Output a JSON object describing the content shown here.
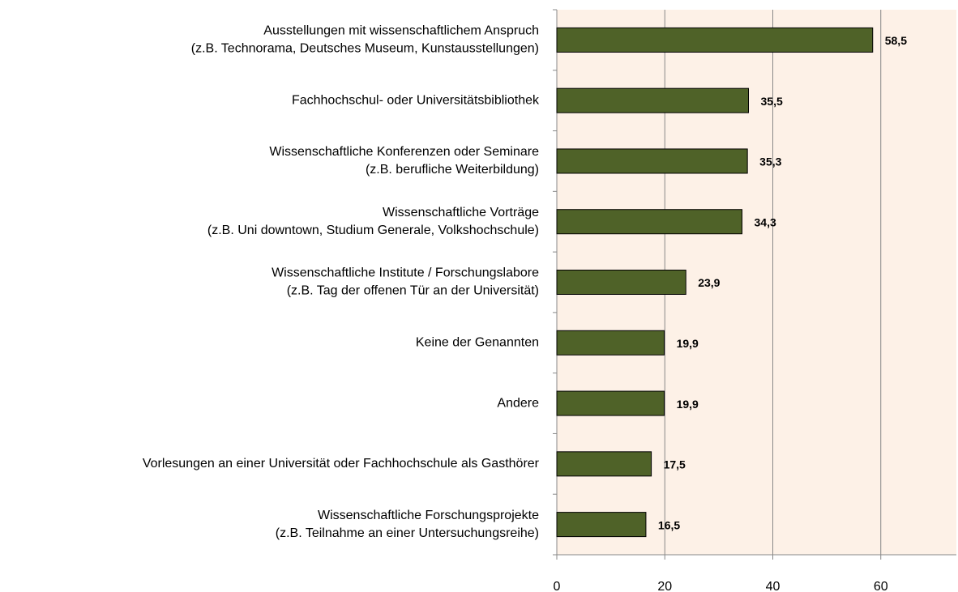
{
  "chart_data": {
    "type": "barh",
    "categories": [
      [
        "Ausstellungen mit wissenschaftlichem Anspruch",
        "(z.B. Technorama, Deutsches Museum, Kunstausstellungen)"
      ],
      [
        "Fachhochschul- oder Universitätsbibliothek"
      ],
      [
        "Wissenschaftliche Konferenzen oder Seminare",
        "(z.B. berufliche Weiterbildung)"
      ],
      [
        "Wissenschaftliche Vorträge",
        "(z.B. Uni downtown, Studium Generale,  Volkshochschule)"
      ],
      [
        "Wissenschaftliche Institute / Forschungslabore",
        "(z.B. Tag der offenen Tür an der Universität)"
      ],
      [
        "Keine der Genannten"
      ],
      [
        "Andere"
      ],
      [
        "Vorlesungen an einer Universität oder Fachhochschule als Gasthörer"
      ],
      [
        "Wissenschaftliche Forschungsprojekte",
        "(z.B. Teilnahme an einer Untersuchungsreihe)"
      ]
    ],
    "values": [
      58.5,
      35.5,
      35.3,
      34.3,
      23.9,
      19.9,
      19.9,
      17.5,
      16.5
    ],
    "value_labels": [
      "58,5",
      "35,5",
      "35,3",
      "34,3",
      "23,9",
      "19,9",
      "19,9",
      "17,5",
      "16,5"
    ],
    "color": "#4f6228",
    "plot_background": "#fdf1e7",
    "xlim": [
      0,
      74
    ],
    "xticks": [
      0,
      20,
      40,
      60
    ],
    "grid": true
  }
}
